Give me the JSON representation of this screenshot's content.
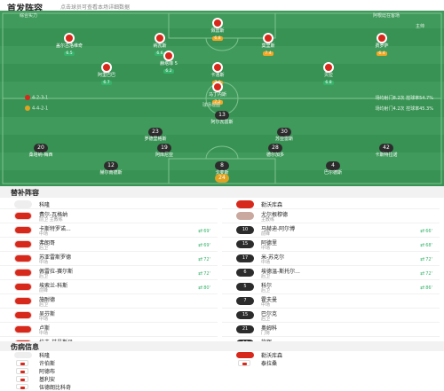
{
  "header": {
    "title": "首发阵容",
    "subtitle": "点击球员可查看本场详细数据"
  },
  "pitch": {
    "home_label": "综合实力",
    "away_label": "阿根廷在客场",
    "away_coach": "主帅",
    "home_formation": "4-2-3-1",
    "away_formation": "4-4-2-1",
    "home_note": "场均射门8.2次 控球率54.7%",
    "away_note": "场均射门4.2次 控球率45.3%",
    "center_label": "球场视图",
    "top_row": [
      {
        "num": "",
        "name": "盖尔古洛维奇",
        "rating": "6.5"
      },
      {
        "num": "",
        "name": "佩雷斯",
        "rating": "6.8"
      },
      {
        "num": "",
        "name": "纳瓦斯",
        "rating": "6.6"
      },
      {
        "num": "",
        "name": "莫里斯",
        "rating": "7.4"
      },
      {
        "num": "",
        "name": "赫塔菲 5",
        "rating": "6.2"
      },
      {
        "num": "",
        "name": "费罗萨",
        "rating": "6.4"
      }
    ],
    "home_players": [
      {
        "num": "",
        "name": "阿里巴巴",
        "rating": "6.7"
      },
      {
        "num": "",
        "name": "卡洛斯",
        "rating": "7.0"
      },
      {
        "num": "",
        "name": "门将",
        "rating": "6.9"
      },
      {
        "num": "",
        "name": "贝拉",
        "rating": "6.8"
      },
      {
        "num": "",
        "name": "马丁内斯",
        "rating": "7.2"
      }
    ],
    "away_players": [
      {
        "num": "23",
        "name": "罗德里格斯",
        "rating": "6.5"
      },
      {
        "num": "13",
        "name": "阿尔瓦雷斯",
        "rating": "7.1"
      },
      {
        "num": "30",
        "name": "苏亚雷斯",
        "rating": "6.6"
      },
      {
        "num": "20",
        "name": "桑塔纳-梅西",
        "rating": "6.3"
      },
      {
        "num": "19",
        "name": "阿库尼亚",
        "rating": "6.9"
      },
      {
        "num": "28",
        "name": "德尔加多",
        "rating": "6.4"
      },
      {
        "num": "42",
        "name": "卡斯特拉诺",
        "rating": "6.7"
      },
      {
        "num": "12",
        "name": "赫尔南德斯",
        "rating": "6.5"
      },
      {
        "num": "4",
        "name": "巴尔德斯",
        "rating": "6.8"
      },
      {
        "num": "8",
        "name": "戈麦斯",
        "rating": "7.0"
      },
      {
        "num": "24",
        "name": "门将",
        "rating": "7.3"
      }
    ]
  },
  "subs": {
    "title": "替补阵容",
    "home": [
      {
        "num": "",
        "name": "科隆",
        "pos": "",
        "minute": ""
      },
      {
        "num": "",
        "name": "费尔-瓦格纳",
        "pos": "前卫 主教练",
        "minute": ""
      },
      {
        "num": "",
        "name": "卡斯特罗诺...",
        "pos": "中场",
        "minute": "69'"
      },
      {
        "num": "",
        "name": "弗朗哥",
        "pos": "后卫",
        "minute": "69'"
      },
      {
        "num": "",
        "name": "苏亚雷斯罗德",
        "pos": "中场",
        "minute": "72'"
      },
      {
        "num": "",
        "name": "佩雷拉-赛尔斯",
        "pos": "后卫",
        "minute": "72'"
      },
      {
        "num": "",
        "name": "埃索兰-科斯",
        "pos": "前锋",
        "minute": "80'"
      },
      {
        "num": "",
        "name": "施耐德",
        "pos": "后卫",
        "minute": ""
      },
      {
        "num": "",
        "name": "吴芬斯",
        "pos": "中场",
        "minute": ""
      },
      {
        "num": "",
        "name": "卢斯",
        "pos": "中场",
        "minute": ""
      },
      {
        "num": "",
        "name": "拉夫-兹曼斯贝...",
        "pos": "后卫",
        "minute": ""
      }
    ],
    "away": [
      {
        "num": "",
        "name": "勒沃库森",
        "pos": "",
        "minute": ""
      },
      {
        "num": "",
        "name": "尤尔根穆德",
        "pos": "主教练",
        "minute": ""
      },
      {
        "num": "10",
        "name": "马赫迪-阿尔博",
        "pos": "前锋",
        "minute": "66'"
      },
      {
        "num": "15",
        "name": "阿德里",
        "pos": "中场",
        "minute": "68'"
      },
      {
        "num": "17",
        "name": "米-苏克尔",
        "pos": "中场",
        "minute": "72'"
      },
      {
        "num": "6",
        "name": "埃德温-斯托尔...",
        "pos": "后卫",
        "minute": "72'"
      },
      {
        "num": "5",
        "name": "科尔",
        "pos": "后卫",
        "minute": "86'"
      },
      {
        "num": "7",
        "name": "霍夫曼",
        "pos": "中场",
        "minute": ""
      },
      {
        "num": "15",
        "name": "巴尔克",
        "pos": "后卫",
        "minute": ""
      },
      {
        "num": "21",
        "name": "奥姆科",
        "pos": "门将",
        "minute": ""
      },
      {
        "num": "14",
        "name": "施辉",
        "pos": "前锋",
        "minute": ""
      }
    ]
  },
  "injuries": {
    "title": "伤病信息",
    "home_team": "科隆",
    "away_team": "勒沃库森",
    "home": [
      {
        "name": "许伯斯",
        "reason": "伤病"
      },
      {
        "name": "阿德布",
        "reason": "停赛"
      },
      {
        "name": "基利安",
        "reason": "伤病"
      },
      {
        "name": "伍德朗比科奇",
        "reason": "伤病"
      }
    ],
    "away": [
      {
        "name": "泰拉桑",
        "reason": "伤病"
      }
    ]
  }
}
